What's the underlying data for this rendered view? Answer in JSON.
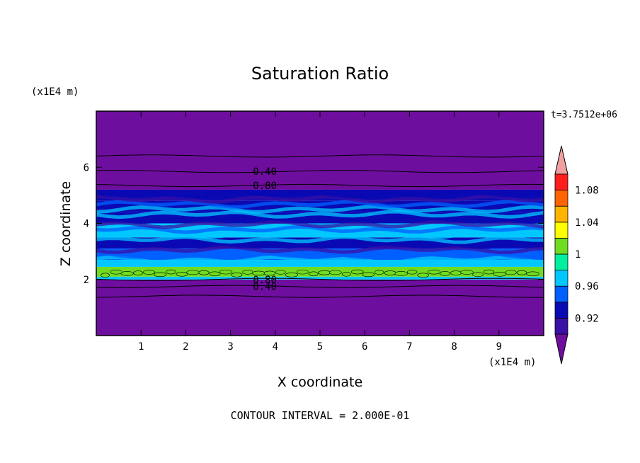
{
  "chart_data": {
    "type": "heatmap",
    "title": "Saturation Ratio",
    "xlabel": "X coordinate",
    "ylabel": "Z coordinate",
    "x_unit": "(x1E4 m)",
    "y_unit": "(x1E4 m)",
    "time_label": "t=3.7512e+06",
    "footer": "CONTOUR INTERVAL = 2.000E-01",
    "xlim": [
      0,
      10
    ],
    "ylim": [
      0,
      8
    ],
    "xticks": [
      1,
      2,
      3,
      4,
      5,
      6,
      7,
      8,
      9
    ],
    "yticks": [
      2,
      4,
      6
    ],
    "grid": false,
    "colorbar": {
      "levels": [
        0.92,
        0.96,
        1,
        1.04,
        1.08
      ],
      "labels": [
        "0.92",
        "0.96",
        "1",
        "1.04",
        "1.08"
      ],
      "colors": [
        "#6e0e9e",
        "#3a10a6",
        "#0a0ab4",
        "#0060ff",
        "#00c8ff",
        "#00f0a0",
        "#70dc20",
        "#ffff00",
        "#ffb400",
        "#ff6400",
        "#ff1e1e",
        "#f0a0a0"
      ]
    },
    "bands": [
      {
        "z0": 0.0,
        "z1": 2.0,
        "value": 0.9
      },
      {
        "z0": 2.0,
        "z1": 2.1,
        "value": 0.96
      },
      {
        "z0": 2.1,
        "z1": 2.45,
        "value": 1.0
      },
      {
        "z0": 2.45,
        "z1": 2.7,
        "value": 0.97
      },
      {
        "z0": 2.7,
        "z1": 3.1,
        "value": 0.95
      },
      {
        "z0": 3.1,
        "z1": 3.5,
        "value": 0.94
      },
      {
        "z0": 3.5,
        "z1": 4.0,
        "value": 0.96
      },
      {
        "z0": 4.0,
        "z1": 4.4,
        "value": 0.93
      },
      {
        "z0": 4.4,
        "z1": 4.8,
        "value": 0.92
      },
      {
        "z0": 4.8,
        "z1": 5.2,
        "value": 0.94
      },
      {
        "z0": 5.2,
        "z1": 8.0,
        "value": 0.9
      }
    ],
    "contour_lines": [
      {
        "z": 6.4
      },
      {
        "z": 5.85,
        "label": "0.40",
        "label_x": 3.5
      },
      {
        "z": 5.35,
        "label": "0.80",
        "label_x": 3.5
      },
      {
        "z": 2.0,
        "label": "0.80",
        "label_x": 3.5
      },
      {
        "z": 1.75,
        "label": "0.40",
        "label_x": 3.5
      },
      {
        "z": 1.4
      }
    ]
  }
}
